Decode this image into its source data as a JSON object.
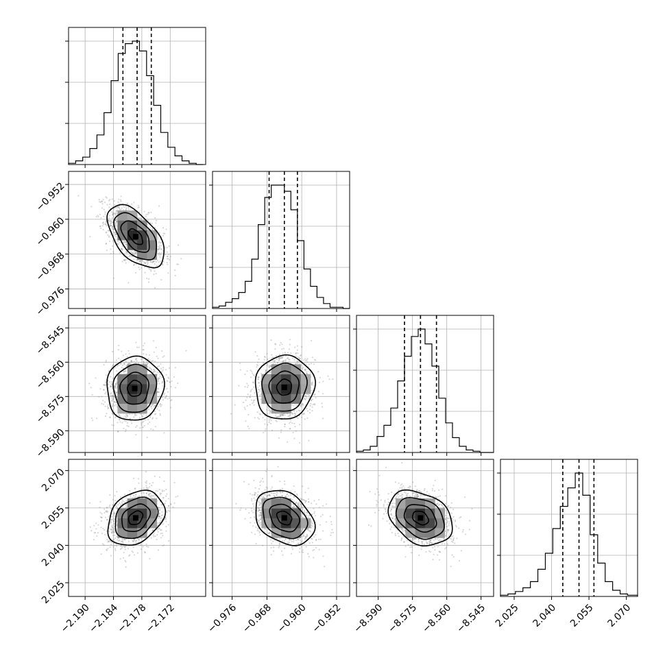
{
  "chart_data": {
    "type": "corner",
    "parameters": [
      {
        "index": 0,
        "range": [
          -2.1935,
          -2.1645
        ],
        "ticks": [
          "−2.190",
          "−2.184",
          "−2.178",
          "−2.172"
        ],
        "tick_values": [
          -2.19,
          -2.184,
          -2.178,
          -2.172
        ],
        "quantiles": [
          -2.182,
          -2.179,
          -2.176
        ],
        "hist_bin_edges": [
          -2.1935,
          -2.192,
          -2.1905,
          -2.189,
          -2.1875,
          -2.186,
          -2.1845,
          -2.183,
          -2.1815,
          -2.18,
          -2.1785,
          -2.177,
          -2.1755,
          -2.174,
          -2.1725,
          -2.171,
          -2.1695,
          -2.168,
          -2.1665,
          -2.165
        ],
        "hist_counts": [
          1,
          3,
          6,
          13,
          24,
          42,
          68,
          90,
          98,
          100,
          92,
          72,
          48,
          26,
          14,
          7,
          3,
          1,
          0
        ]
      },
      {
        "index": 1,
        "range": [
          -0.9805,
          -0.949
        ],
        "ticks": [
          "−0.976",
          "−0.968",
          "−0.960",
          "−0.952"
        ],
        "tick_values": [
          -0.976,
          -0.968,
          -0.96,
          -0.952
        ],
        "quantiles": [
          -0.9675,
          -0.964,
          -0.961
        ],
        "hist_bin_edges": [
          -0.9805,
          -0.979,
          -0.9775,
          -0.976,
          -0.9745,
          -0.973,
          -0.9715,
          -0.97,
          -0.9685,
          -0.967,
          -0.9655,
          -0.964,
          -0.9625,
          -0.961,
          -0.9595,
          -0.958,
          -0.9565,
          -0.955,
          -0.9535,
          -0.952,
          -0.9505,
          -0.949
        ],
        "hist_counts": [
          1,
          2,
          5,
          8,
          13,
          22,
          40,
          68,
          90,
          100,
          100,
          95,
          80,
          55,
          32,
          18,
          9,
          4,
          1,
          1,
          0
        ]
      },
      {
        "index": 2,
        "range": [
          -8.5995,
          -8.5395
        ],
        "ticks": [
          "−8.590",
          "−8.575",
          "−8.560",
          "−8.545"
        ],
        "tick_values": [
          -8.59,
          -8.575,
          -8.56,
          -8.545
        ],
        "quantiles": [
          -8.5785,
          -8.5715,
          -8.5645
        ],
        "hist_bin_edges": [
          -8.5995,
          -8.5965,
          -8.5935,
          -8.5905,
          -8.5875,
          -8.5845,
          -8.5815,
          -8.5785,
          -8.5755,
          -8.5725,
          -8.5695,
          -8.5665,
          -8.5635,
          -8.5605,
          -8.5575,
          -8.5545,
          -8.5515,
          -8.5485,
          -8.5455,
          -8.5425,
          -8.5395
        ],
        "hist_counts": [
          1,
          2,
          5,
          13,
          22,
          36,
          58,
          78,
          94,
          100,
          88,
          70,
          44,
          24,
          12,
          5,
          2,
          1,
          0,
          0
        ]
      },
      {
        "index": 3,
        "range": [
          2.0195,
          2.0745
        ],
        "ticks": [
          "2.025",
          "2.040",
          "2.055",
          "2.070"
        ],
        "tick_values": [
          2.025,
          2.04,
          2.055,
          2.07
        ],
        "quantiles": [
          2.0445,
          2.051,
          2.057
        ],
        "hist_bin_edges": [
          2.0195,
          2.0225,
          2.0255,
          2.0285,
          2.0315,
          2.0345,
          2.0375,
          2.0405,
          2.0435,
          2.0465,
          2.0495,
          2.0525,
          2.0555,
          2.0585,
          2.0615,
          2.0645,
          2.0675,
          2.0705,
          2.0745
        ],
        "hist_counts": [
          1,
          2,
          4,
          7,
          12,
          22,
          35,
          55,
          73,
          88,
          100,
          82,
          50,
          27,
          12,
          5,
          2,
          1
        ]
      }
    ],
    "pairs": [
      {
        "x": 0,
        "y": 1,
        "center": [
          -2.1793,
          -0.964
        ],
        "sigma": [
          0.003,
          0.0036
        ],
        "correlation": -0.55
      },
      {
        "x": 0,
        "y": 2,
        "center": [
          -2.1795,
          -8.5715
        ],
        "sigma": [
          0.003,
          0.007
        ],
        "correlation": 0.05
      },
      {
        "x": 1,
        "y": 2,
        "center": [
          -0.964,
          -8.571
        ],
        "sigma": [
          0.0034,
          0.007
        ],
        "correlation": 0.05
      },
      {
        "x": 0,
        "y": 3,
        "center": [
          -2.1793,
          2.051
        ],
        "sigma": [
          0.003,
          0.0055
        ],
        "correlation": 0.3
      },
      {
        "x": 1,
        "y": 3,
        "center": [
          -0.964,
          2.051
        ],
        "sigma": [
          0.0034,
          0.0055
        ],
        "correlation": -0.3
      },
      {
        "x": 2,
        "y": 3,
        "center": [
          -8.5715,
          2.051
        ],
        "sigma": [
          0.007,
          0.0055
        ],
        "correlation": -0.3
      }
    ],
    "contour_levels_sigma": [
      0.5,
      1.0,
      1.5,
      2.0
    ],
    "grid": true
  }
}
